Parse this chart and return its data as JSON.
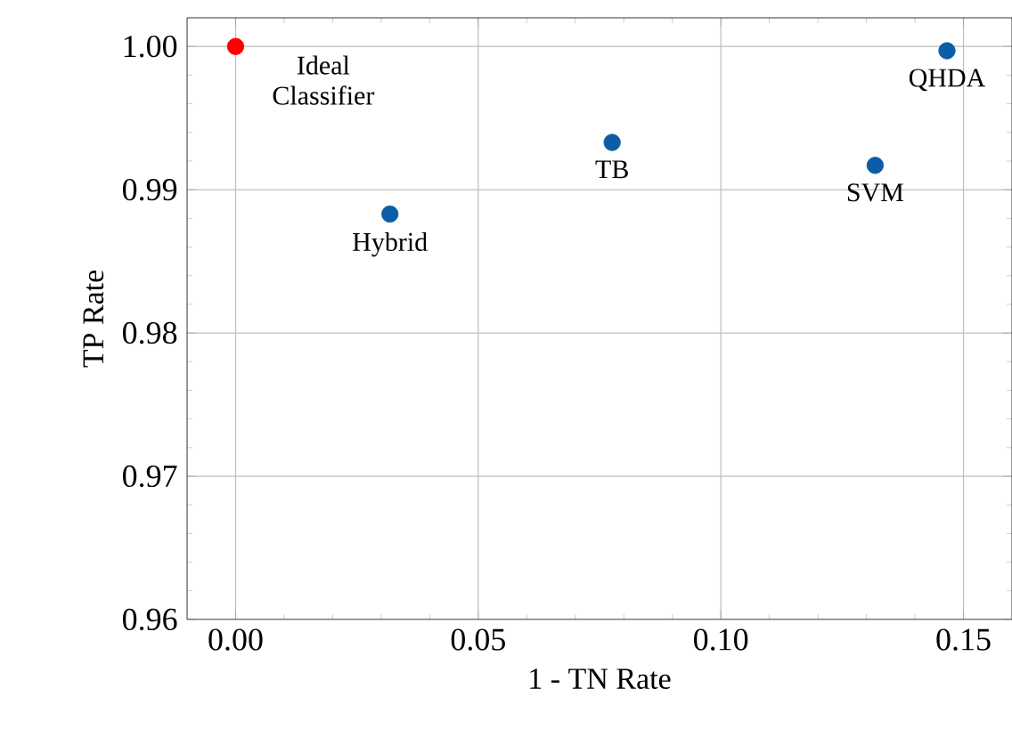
{
  "chart_data": {
    "type": "scatter",
    "xlabel": "1 - TN Rate",
    "ylabel": "TP Rate",
    "xlim": [
      -0.01,
      0.16
    ],
    "xticks": [
      {
        "value": 0,
        "label": "0.00"
      },
      0.05,
      {
        "value": 0.1,
        "label": "0.10"
      },
      0.15
    ],
    "ylim": [
      0.96,
      1.002
    ],
    "yticks": [
      0.96,
      0.97,
      0.98,
      0.99,
      {
        "value": 1,
        "label": "1.00"
      }
    ],
    "grid": true,
    "series": [
      {
        "color": "#ff0000",
        "x": [
          0
        ],
        "values": [
          1.0
        ]
      },
      {
        "color": "#0c5da5",
        "x": [
          0.0318,
          0.0776,
          0.1318,
          0.1466
        ],
        "values": [
          0.9883,
          0.9933,
          0.9917,
          0.9997
        ]
      }
    ],
    "annotations": [
      {
        "text": "Ideal Classifier",
        "x": 0,
        "y": 1.0
      },
      {
        "text": "Hybrid",
        "x": 0.0318,
        "y": 0.9883
      },
      {
        "text": "TB",
        "x": 0.0776,
        "y": 0.9933
      },
      {
        "text": "SVM",
        "x": 0.1318,
        "y": 0.9917
      },
      {
        "text": "QHDA",
        "x": 0.1466,
        "y": 0.9997
      }
    ]
  }
}
